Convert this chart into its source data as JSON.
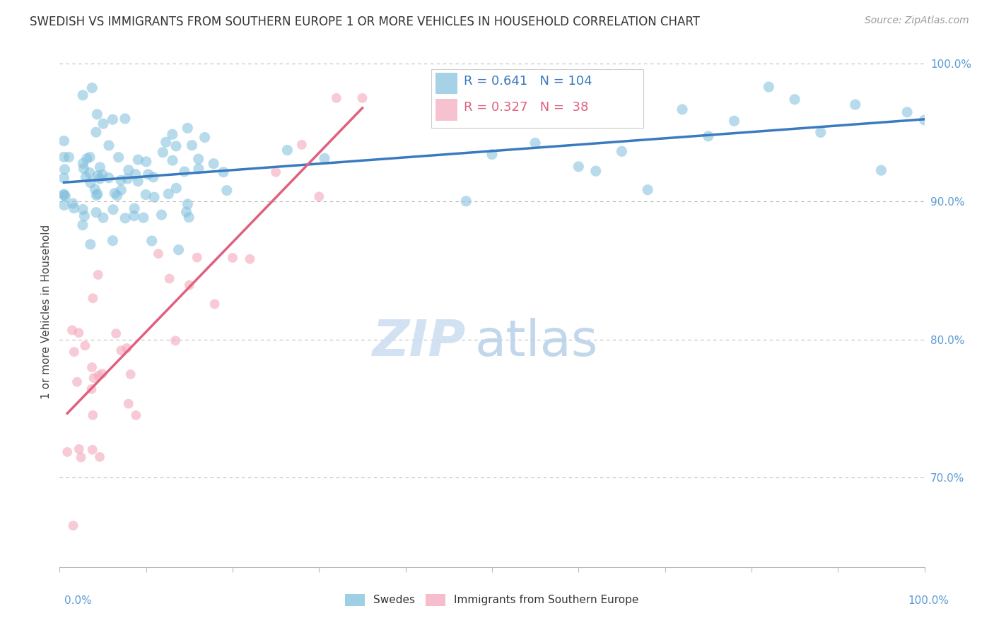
{
  "title": "SWEDISH VS IMMIGRANTS FROM SOUTHERN EUROPE 1 OR MORE VEHICLES IN HOUSEHOLD CORRELATION CHART",
  "source": "Source: ZipAtlas.com",
  "ylabel": "1 or more Vehicles in Household",
  "legend_swedes": "Swedes",
  "legend_immigrants": "Immigrants from Southern Europe",
  "R_swedes": 0.641,
  "N_swedes": 104,
  "R_immigrants": 0.327,
  "N_immigrants": 38,
  "blue_color": "#7fbfdd",
  "blue_line_color": "#3a7abf",
  "pink_color": "#f4a8bc",
  "pink_line_color": "#e0607e",
  "watermark_zip": "ZIP",
  "watermark_atlas": "atlas",
  "ylim_min": 0.635,
  "ylim_max": 1.005,
  "xlim_min": 0.0,
  "xlim_max": 1.0,
  "yticks": [
    0.7,
    0.8,
    0.9,
    1.0
  ],
  "ytick_labels": [
    "70.0%",
    "80.0%",
    "90.0%",
    "100.0%"
  ],
  "right_tick_color": "#5b9bd5",
  "dot_size_blue": 120,
  "dot_size_pink": 100,
  "blue_alpha": 0.55,
  "pink_alpha": 0.6,
  "title_fontsize": 12,
  "source_fontsize": 10,
  "tick_label_fontsize": 11
}
